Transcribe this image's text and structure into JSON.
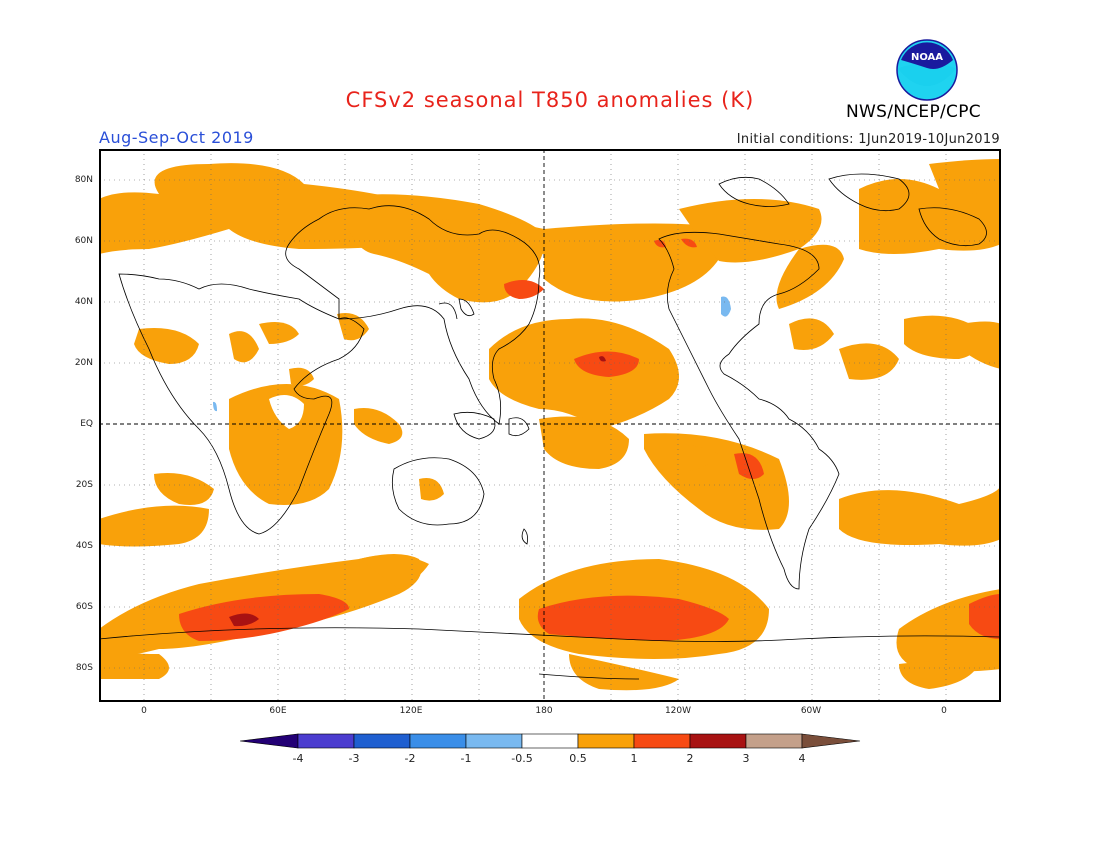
{
  "header": {
    "title": "CFSv2 seasonal T850 anomalies (K)",
    "season": "Aug-Sep-Oct 2019",
    "initial_conditions": "Initial conditions: 1Jun2019-10Jun2019",
    "agency": "NWS/NCEP/CPC",
    "logo_text": "NOAA"
  },
  "map": {
    "lat_labels": [
      "80N",
      "60N",
      "40N",
      "20N",
      "EQ",
      "20S",
      "40S",
      "60S",
      "80S"
    ],
    "lon_labels": [
      "0",
      "60E",
      "120E",
      "180",
      "120W",
      "60W",
      "0"
    ],
    "projection": "cylindrical-equidistant",
    "colors": {
      "anom_0_5_to_1": "#f9a10a",
      "anom_1_to_2": "#f74a13",
      "anom_2_to_3": "#a81212",
      "anom_neg_1_to_neg_0_5": "#79b9f0",
      "coastline": "#000000",
      "grid": "#666666"
    }
  },
  "colorbar": {
    "labels": [
      "-4",
      "-3",
      "-2",
      "-1",
      "-0.5",
      "0.5",
      "1",
      "2",
      "3",
      "4"
    ],
    "colors": [
      "#230075",
      "#4b3ccf",
      "#1f5fd0",
      "#3a8ee8",
      "#79b9f0",
      "#ffffff",
      "#f9a10a",
      "#f74a13",
      "#a81212",
      "#c4a08a",
      "#7a4e3a"
    ]
  }
}
